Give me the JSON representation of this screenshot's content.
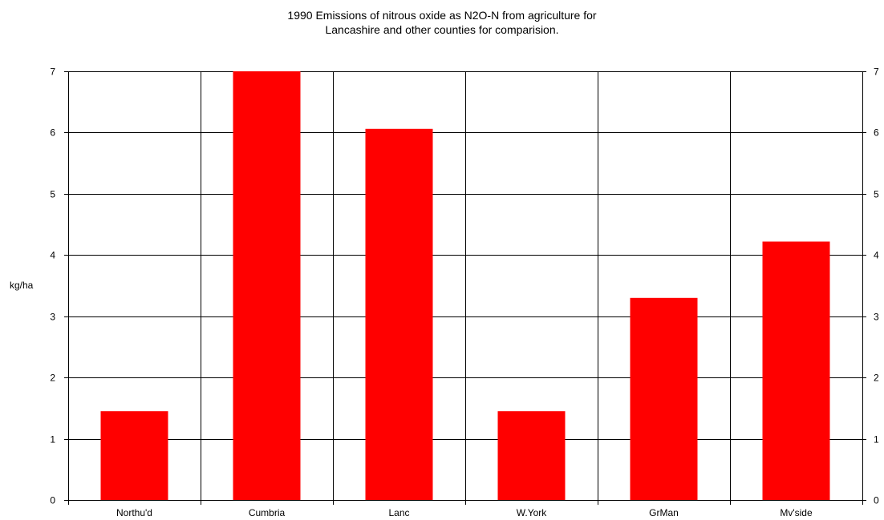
{
  "chart_data": {
    "type": "bar",
    "title": [
      "1990 Emissions of nitrous oxide as N2O-N from agriculture for",
      "Lancashire and other counties for comparision."
    ],
    "xlabel": "",
    "ylabel": "kg/ha",
    "categories": [
      "Northu'd",
      "Cumbria",
      "Lanc",
      "W.York",
      "GrMan",
      "Mv'side"
    ],
    "values": [
      1.45,
      7.0,
      6.06,
      1.45,
      3.3,
      4.22
    ],
    "ylim": [
      0,
      7
    ],
    "yticks": [
      "0",
      "1",
      "2",
      "3",
      "4",
      "5",
      "6",
      "7"
    ],
    "secondary_yaxis": true,
    "grid": true,
    "legend": "none",
    "bar_color": "#ff0000"
  }
}
